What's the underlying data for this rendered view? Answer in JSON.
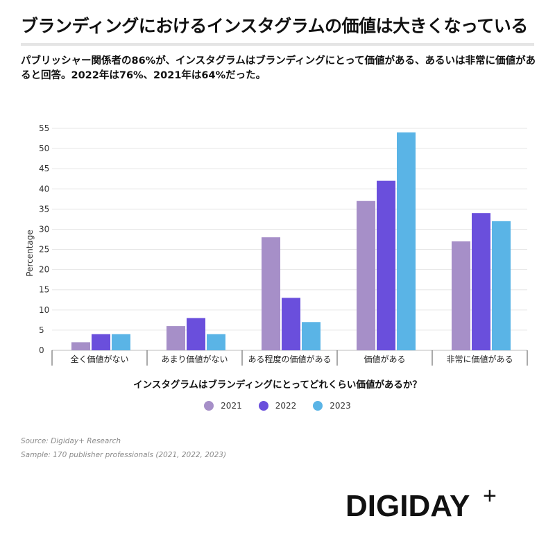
{
  "header": {
    "title": "ブランディングにおけるインスタグラムの価値は大きくなっている",
    "subtitle": "パブリッシャー関係者の86%が、インスタグラムはブランディングにとって価値がある、あるいは非常に価値があると回答。2022年は76%、2021年は64%だった。"
  },
  "chart_data": {
    "type": "bar",
    "title": "インスタグラムはブランディングにとってどれくらい価値があるか？",
    "xlabel": "",
    "ylabel": "Percentage",
    "ylim": [
      0,
      55
    ],
    "yticks": [
      0,
      5,
      10,
      15,
      20,
      25,
      30,
      35,
      40,
      45,
      50,
      55
    ],
    "categories": [
      "全く価値がない",
      "あまり価値がない",
      "ある程度の価値がある",
      "価値がある",
      "非常に価値がある"
    ],
    "series": [
      {
        "name": "2021",
        "color": "#a68fc8",
        "values": [
          2,
          6,
          28,
          37,
          27
        ]
      },
      {
        "name": "2022",
        "color": "#6a4fdc",
        "values": [
          4,
          8,
          13,
          42,
          34
        ]
      },
      {
        "name": "2023",
        "color": "#5ab4e6",
        "values": [
          4,
          4,
          7,
          54,
          32
        ]
      }
    ],
    "grid": true,
    "legend": "bottom-center"
  },
  "footer": {
    "source": "Source: Digiday+ Research",
    "sample": "Sample: 170 publisher professionals (2021, 2022, 2023)",
    "logo_text": "DIGIDAY",
    "logo_plus": "+"
  }
}
